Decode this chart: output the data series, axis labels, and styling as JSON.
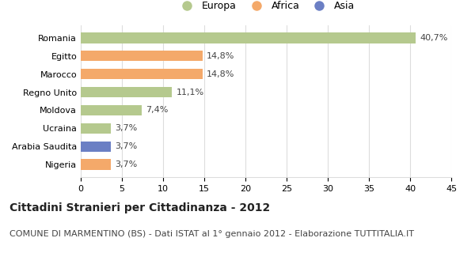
{
  "categories": [
    "Romania",
    "Egitto",
    "Marocco",
    "Regno Unito",
    "Moldova",
    "Ucraina",
    "Arabia Saudita",
    "Nigeria"
  ],
  "values": [
    40.7,
    14.8,
    14.8,
    11.1,
    7.4,
    3.7,
    3.7,
    3.7
  ],
  "labels": [
    "40,7%",
    "14,8%",
    "14,8%",
    "11,1%",
    "7,4%",
    "3,7%",
    "3,7%",
    "3,7%"
  ],
  "colors": [
    "#b5c98e",
    "#f4a96a",
    "#f4a96a",
    "#b5c98e",
    "#b5c98e",
    "#b5c98e",
    "#6b7fc4",
    "#f4a96a"
  ],
  "legend_labels": [
    "Europa",
    "Africa",
    "Asia"
  ],
  "legend_colors": [
    "#b5c98e",
    "#f4a96a",
    "#6b7fc4"
  ],
  "title": "Cittadini Stranieri per Cittadinanza - 2012",
  "subtitle": "COMUNE DI MARMENTINO (BS) - Dati ISTAT al 1° gennaio 2012 - Elaborazione TUTTITALIA.IT",
  "xlim": [
    0,
    45
  ],
  "xticks": [
    0,
    5,
    10,
    15,
    20,
    25,
    30,
    35,
    40,
    45
  ],
  "background_color": "#ffffff",
  "grid_color": "#dddddd",
  "title_fontsize": 10,
  "subtitle_fontsize": 8,
  "label_fontsize": 8,
  "tick_fontsize": 8
}
